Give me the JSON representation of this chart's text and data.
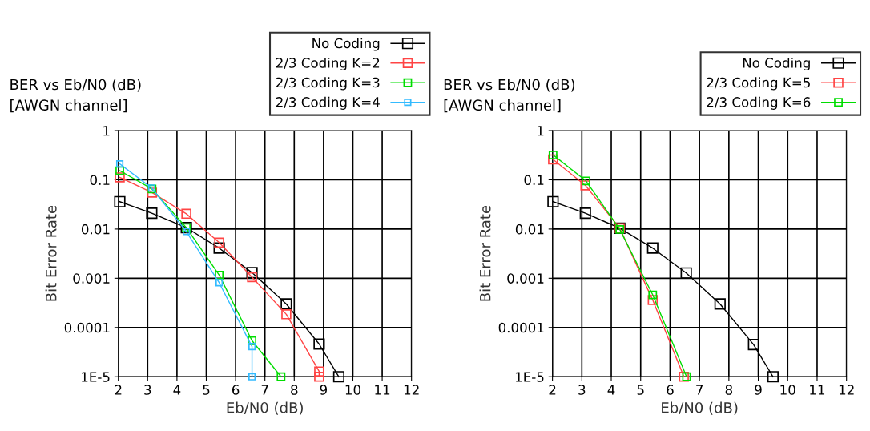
{
  "chart_data": [
    {
      "type": "line",
      "title": "BER vs Eb/N0 (dB)\n[AWGN channel]",
      "xlabel": "Eb/N0 (dB)",
      "ylabel": "Bit Error Rate",
      "log": "y",
      "grid": true,
      "legend": "top right",
      "marker": "square",
      "line_style": "solid",
      "xlim": [
        2,
        12
      ],
      "xticks": [
        2,
        3,
        4,
        5,
        6,
        7,
        8,
        9,
        10,
        11,
        12
      ],
      "ylim": [
        1e-05,
        1
      ],
      "yticks": [
        {
          "value": 1,
          "label": "1"
        },
        {
          "value": 0.1,
          "label": "0.1"
        },
        {
          "value": 0.01,
          "label": "0.01"
        },
        {
          "value": 0.001,
          "label": "0.001"
        },
        {
          "value": 0.0001,
          "label": "0.0001"
        },
        {
          "value": 1e-05,
          "label": "1E-5"
        }
      ],
      "series": [
        {
          "name": "No Coding",
          "color": "#000000",
          "x": [
            2.05,
            3.14,
            4.32,
            5.44,
            6.56,
            7.73,
            8.85,
            9.52
          ],
          "values": [
            0.036,
            0.021,
            0.0107,
            0.0041,
            0.0013,
            0.0003,
            4.6e-05,
            1e-05
          ]
        },
        {
          "name": "2/3 Coding K=2",
          "color": "#ff4444",
          "x": [
            2.05,
            3.15,
            4.32,
            5.44,
            6.56,
            7.73,
            8.85,
            8.85
          ],
          "values": [
            0.112,
            0.055,
            0.0204,
            0.0053,
            0.00105,
            0.000185,
            1.28e-05,
            1e-05
          ]
        },
        {
          "name": "2/3 Coding K=3",
          "color": "#00dd00",
          "x": [
            2.05,
            3.15,
            4.32,
            5.44,
            6.56,
            7.55
          ],
          "values": [
            0.153,
            0.065,
            0.0107,
            0.00116,
            5.4e-05,
            1e-05
          ]
        },
        {
          "name": "2/3 Coding K=4",
          "color": "#33bbff",
          "x": [
            2.05,
            3.14,
            4.32,
            5.44,
            6.56,
            6.56
          ],
          "values": [
            0.21,
            0.068,
            0.0089,
            0.00081,
            4.1e-05,
            1e-05
          ]
        }
      ]
    },
    {
      "type": "line",
      "title": "BER vs Eb/N0 (dB)\n[AWGN channel]",
      "xlabel": "Eb/N0 (dB)",
      "ylabel": "Bit Error Rate",
      "log": "y",
      "grid": true,
      "legend": "top right",
      "marker": "square",
      "line_style": "solid",
      "xlim": [
        2,
        12
      ],
      "xticks": [
        2,
        3,
        4,
        5,
        6,
        7,
        8,
        9,
        10,
        11,
        12
      ],
      "ylim": [
        1e-05,
        1
      ],
      "yticks": [
        {
          "value": 1,
          "label": "1"
        },
        {
          "value": 0.1,
          "label": "0.1"
        },
        {
          "value": 0.01,
          "label": "0.01"
        },
        {
          "value": 0.001,
          "label": "0.001"
        },
        {
          "value": 0.0001,
          "label": "0.0001"
        },
        {
          "value": 1e-05,
          "label": "1E-5"
        }
      ],
      "series": [
        {
          "name": "No Coding",
          "color": "#000000",
          "x": [
            2.02,
            3.12,
            4.29,
            5.41,
            6.55,
            7.7,
            8.84,
            9.5
          ],
          "values": [
            0.036,
            0.021,
            0.0104,
            0.0041,
            0.00128,
            0.0003,
            4.5e-05,
            1e-05
          ]
        },
        {
          "name": "2/3 Coding K=5",
          "color": "#ff4444",
          "x": [
            2.02,
            3.12,
            4.29,
            5.41,
            6.47
          ],
          "values": [
            0.26,
            0.077,
            0.0104,
            0.00036,
            1e-05
          ]
        },
        {
          "name": "2/3 Coding K=6",
          "color": "#00dd00",
          "x": [
            2.02,
            3.14,
            4.29,
            5.41,
            6.56
          ],
          "values": [
            0.32,
            0.095,
            0.0098,
            0.00046,
            1e-05
          ]
        }
      ]
    }
  ]
}
